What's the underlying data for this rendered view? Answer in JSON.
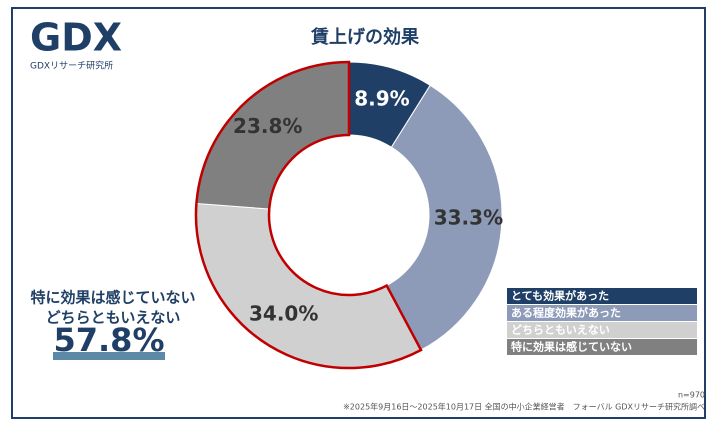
{
  "logo": {
    "mark": "GDX",
    "name": "GDXリサーチ研究所"
  },
  "chart_data": {
    "type": "donut",
    "title": "賃上げの効果",
    "categories": [
      "とても効果があった",
      "ある程度効果があった",
      "どちらともいえない",
      "特に効果は感じていない"
    ],
    "values": [
      8.9,
      33.3,
      34.0,
      23.8
    ],
    "value_labels": [
      "8.9%",
      "33.3%",
      "34.0%",
      "23.8%"
    ],
    "colors": [
      "#1f3f66",
      "#8e9bb8",
      "#d0d0d0",
      "#808080"
    ],
    "highlight": [
      2,
      3
    ],
    "highlight_color": "#c00000",
    "legend": "lower right",
    "annotation": {
      "lines": [
        "特に効果は感じていない",
        "どちらともいえない"
      ],
      "total": "57.8%"
    },
    "note": "n=970",
    "footnote": "※2025年9月16日～2025年10月17日 全国の中小企業経営者　フォーバル GDXリサーチ研究所調べ"
  }
}
